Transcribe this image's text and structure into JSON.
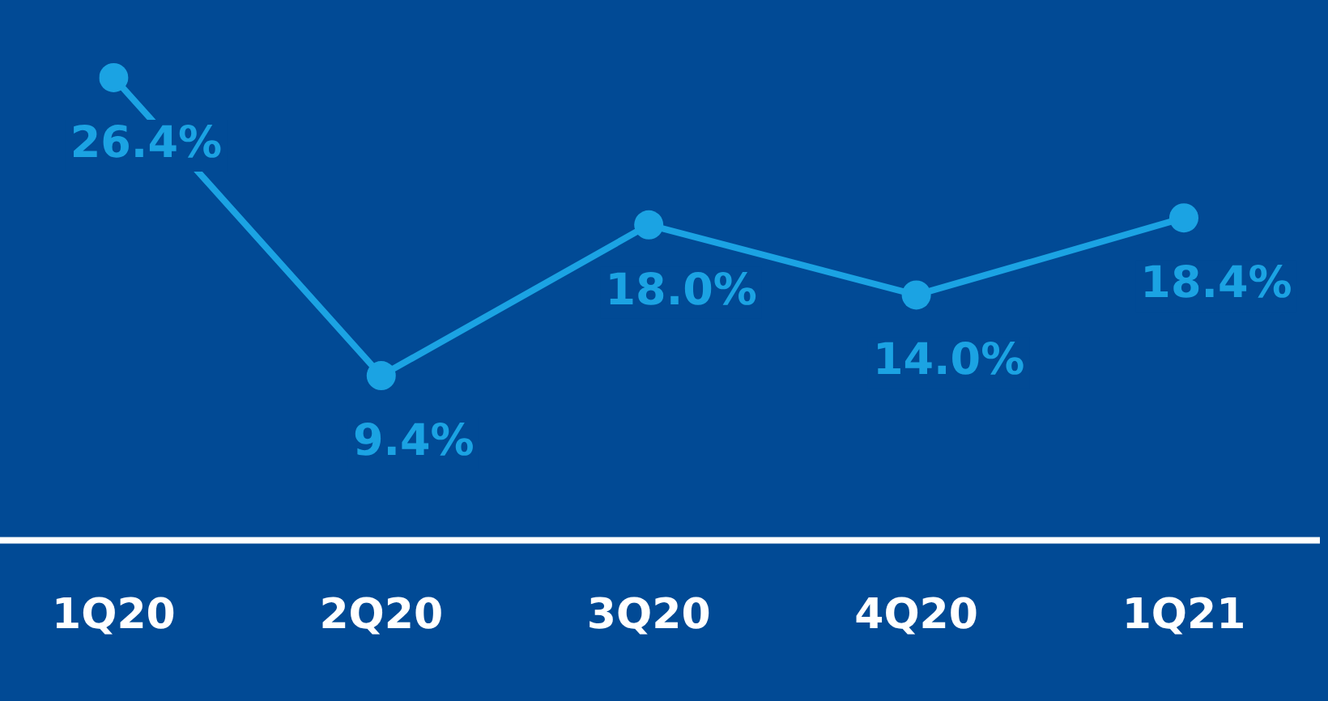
{
  "chart_data": {
    "type": "line",
    "categories": [
      "1Q20",
      "2Q20",
      "3Q20",
      "4Q20",
      "1Q21"
    ],
    "series": [
      {
        "color": "#1ba3e3",
        "values": [
          26.4,
          9.4,
          18.0,
          14.0,
          18.4
        ],
        "value_labels": [
          "26.4%",
          "9.4%",
          "18.0%",
          "14.0%",
          "18.4%"
        ]
      }
    ],
    "tick_labels": "x",
    "grid": false,
    "legend": false,
    "marker": "circle",
    "line_style": "solid"
  }
}
